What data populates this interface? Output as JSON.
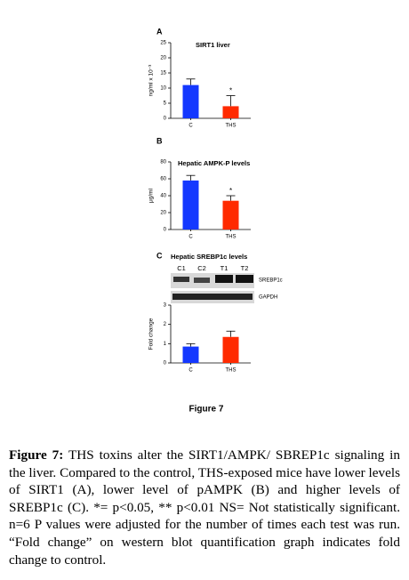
{
  "chart_data": [
    {
      "type": "bar",
      "panel": "A",
      "title": "SIRT1 liver",
      "y_label": "ng/ml x 10⁻³",
      "categories": [
        "C",
        "THS"
      ],
      "values": [
        11,
        4
      ],
      "errors": [
        2,
        3.5
      ],
      "colors": [
        "#1438ff",
        "#ff2a00"
      ],
      "annotations": [
        null,
        "*"
      ],
      "ylim": [
        0,
        25
      ],
      "yticks": [
        0,
        5,
        10,
        15,
        20,
        25
      ]
    },
    {
      "type": "bar",
      "panel": "B",
      "title": "Hepatic AMPK-P levels",
      "y_label": "μg/ml",
      "categories": [
        "C",
        "THS"
      ],
      "values": [
        58,
        34
      ],
      "errors": [
        6,
        6
      ],
      "colors": [
        "#1438ff",
        "#ff2a00"
      ],
      "annotations": [
        null,
        "*"
      ],
      "ylim": [
        0,
        80
      ],
      "yticks": [
        0,
        20,
        40,
        60,
        80
      ]
    },
    {
      "type": "bar",
      "panel": "C",
      "title": "Hepatic SREBP1c levels",
      "y_label": "Fold change",
      "lanes": [
        "C1",
        "C2",
        "T1",
        "T2"
      ],
      "bands": [
        "SREBP1c",
        "GAPDH"
      ],
      "categories": [
        "C",
        "THS"
      ],
      "values": [
        0.85,
        1.35
      ],
      "errors": [
        0.15,
        0.3
      ],
      "colors": [
        "#1438ff",
        "#ff2a00"
      ],
      "ylim": [
        0,
        3
      ],
      "yticks": [
        0,
        1,
        2,
        3
      ]
    }
  ],
  "figure_label": "Figure 7",
  "caption": {
    "label": "Figure 7:",
    "text": "THS toxins alter the SIRT1/AMPK/ SBREP1c signaling in the liver. Compared to the control, THS-exposed mice have lower levels of SIRT1 (A), lower level of pAMPK (B) and higher levels of SREBP1c (C). *= p<0.05, ** p<0.01 NS= Not statistically significant. n=6 P values were adjusted for the number of times each test was run. “Fold change” on western blot quantification graph indicates fold change to control."
  }
}
